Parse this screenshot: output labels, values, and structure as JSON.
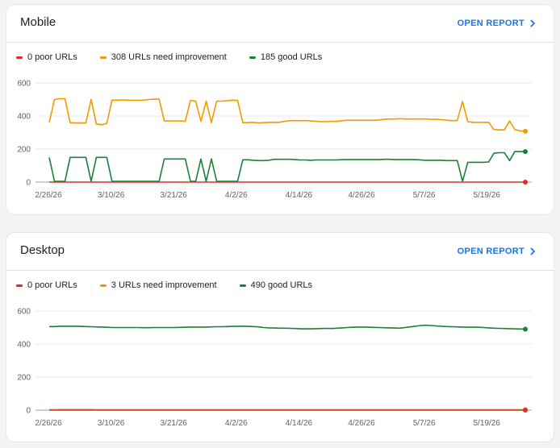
{
  "colors": {
    "poor": "#d93025",
    "needs_improvement": "#f29900",
    "good": "#188038",
    "accent": "#1a73e8"
  },
  "reports": [
    {
      "title": "Mobile",
      "open_report_label": "OPEN REPORT",
      "legend": [
        {
          "label": "0 poor URLs",
          "color": "#d93025"
        },
        {
          "label": "308 URLs need improvement",
          "color": "#f29900"
        },
        {
          "label": "185 good URLs",
          "color": "#188038"
        }
      ],
      "chart_data": {
        "type": "line",
        "y_ticks": [
          "0",
          "200",
          "400",
          "600"
        ],
        "ylim": [
          0,
          600
        ],
        "x_tick_labels": [
          "2/26/26",
          "3/10/26",
          "3/21/26",
          "4/2/26",
          "4/14/26",
          "4/26/26",
          "5/7/26",
          "5/19/26"
        ],
        "grid": true,
        "series": [
          {
            "name": "0 poor URLs",
            "color": "#d93025",
            "values": [
              0,
              0,
              0,
              0,
              0,
              0,
              0,
              0,
              0,
              0,
              0,
              0,
              0,
              0,
              0,
              0,
              0,
              0,
              0,
              0,
              0,
              0,
              0,
              0,
              0,
              0,
              0,
              0,
              0,
              0,
              0,
              0,
              0,
              0,
              0,
              0,
              0,
              0,
              0,
              0,
              0,
              0,
              0,
              0,
              0,
              0,
              0,
              0,
              0,
              0,
              0,
              0,
              0,
              0,
              0,
              0,
              0,
              0,
              0,
              0,
              0,
              0,
              0,
              0,
              0,
              0,
              0,
              0,
              0,
              0,
              0,
              0,
              0,
              0,
              0,
              0,
              0,
              0,
              0,
              0,
              0,
              0,
              0,
              0,
              0,
              0,
              0,
              0,
              0,
              0,
              0,
              0
            ]
          },
          {
            "name": "308 URLs need improvement",
            "color": "#f29900",
            "values": [
              360,
              500,
              505,
              505,
              360,
              358,
              358,
              358,
              500,
              352,
              348,
              355,
              496,
              496,
              497,
              496,
              495,
              495,
              496,
              500,
              502,
              502,
              370,
              370,
              370,
              370,
              368,
              495,
              490,
              368,
              490,
              360,
              490,
              490,
              492,
              496,
              495,
              360,
              360,
              362,
              358,
              360,
              362,
              362,
              362,
              368,
              372,
              372,
              372,
              372,
              370,
              368,
              366,
              366,
              368,
              368,
              372,
              374,
              374,
              374,
              374,
              374,
              374,
              376,
              380,
              382,
              382,
              384,
              382,
              382,
              382,
              382,
              382,
              380,
              380,
              378,
              374,
              372,
              372,
              488,
              366,
              362,
              362,
              362,
              362,
              318,
              316,
              316,
              370,
              318,
              310,
              308
            ]
          },
          {
            "name": "185 good URLs",
            "color": "#188038",
            "values": [
              150,
              5,
              5,
              5,
              150,
              150,
              150,
              150,
              5,
              150,
              150,
              150,
              5,
              5,
              5,
              5,
              5,
              5,
              5,
              5,
              5,
              5,
              140,
              140,
              140,
              140,
              140,
              5,
              5,
              140,
              5,
              140,
              5,
              5,
              5,
              5,
              5,
              135,
              135,
              132,
              130,
              130,
              132,
              138,
              138,
              138,
              138,
              136,
              134,
              134,
              132,
              134,
              134,
              134,
              134,
              134,
              136,
              136,
              136,
              136,
              136,
              136,
              136,
              136,
              138,
              138,
              136,
              136,
              136,
              136,
              136,
              134,
              132,
              132,
              132,
              132,
              130,
              130,
              130,
              5,
              120,
              120,
              120,
              120,
              122,
              175,
              178,
              178,
              130,
              185,
              185,
              185
            ]
          }
        ]
      }
    },
    {
      "title": "Desktop",
      "open_report_label": "OPEN REPORT",
      "legend": [
        {
          "label": "0 poor URLs",
          "color": "#d93025"
        },
        {
          "label": "3 URLs need improvement",
          "color": "#f29900"
        },
        {
          "label": "490 good URLs",
          "color": "#188038"
        }
      ],
      "chart_data": {
        "type": "line",
        "y_ticks": [
          "0",
          "200",
          "400",
          "600"
        ],
        "ylim": [
          0,
          600
        ],
        "x_tick_labels": [
          "2/26/26",
          "3/10/26",
          "3/21/26",
          "4/2/26",
          "4/14/26",
          "4/26/26",
          "5/7/26",
          "5/19/26"
        ],
        "grid": true,
        "series": [
          {
            "name": "0 poor URLs",
            "color": "#d93025",
            "values": [
              0,
              0,
              0,
              0,
              0,
              0,
              0,
              0,
              0,
              0,
              0,
              0,
              0,
              0,
              0,
              0,
              0,
              0,
              0,
              0,
              0,
              0,
              0,
              0,
              0,
              0,
              0,
              0,
              0,
              0,
              0,
              0,
              0,
              0,
              0,
              0,
              0,
              0,
              0,
              0,
              0,
              0,
              0,
              0,
              0,
              0,
              0,
              0,
              0,
              0,
              0,
              0,
              0,
              0,
              0,
              0,
              0,
              0,
              0,
              0,
              0,
              0,
              0,
              0,
              0,
              0,
              0,
              0,
              0,
              0,
              0,
              0,
              0,
              0,
              0,
              0,
              0,
              0,
              0,
              0,
              0,
              0,
              0,
              0,
              0,
              0,
              0,
              0,
              0,
              0,
              0,
              0
            ]
          },
          {
            "name": "3 URLs need improvement",
            "color": "#f29900",
            "values": [
              3,
              3,
              4,
              4,
              4,
              4,
              4,
              4,
              4,
              3,
              3,
              3,
              3,
              3,
              3,
              3,
              3,
              3,
              3,
              3,
              3,
              3,
              3,
              3,
              3,
              3,
              3,
              3,
              3,
              3,
              3,
              3,
              3,
              3,
              3,
              3,
              3,
              3,
              3,
              3,
              3,
              3,
              3,
              3,
              3,
              3,
              3,
              3,
              3,
              3,
              3,
              3,
              3,
              3,
              3,
              3,
              3,
              3,
              3,
              3,
              3,
              3,
              3,
              3,
              3,
              3,
              3,
              3,
              3,
              3,
              3,
              3,
              3,
              3,
              3,
              3,
              3,
              3,
              3,
              3,
              3,
              3,
              3,
              3,
              3,
              3,
              3,
              3,
              3,
              3,
              3,
              3
            ]
          },
          {
            "name": "490 good URLs",
            "color": "#188038",
            "values": [
              506,
              506,
              508,
              508,
              508,
              508,
              507,
              506,
              505,
              504,
              503,
              502,
              500,
              500,
              500,
              500,
              500,
              500,
              499,
              499,
              500,
              500,
              500,
              500,
              500,
              501,
              502,
              503,
              503,
              503,
              503,
              504,
              505,
              505,
              506,
              507,
              508,
              508,
              507,
              506,
              504,
              500,
              498,
              497,
              496,
              496,
              495,
              494,
              492,
              492,
              492,
              493,
              494,
              495,
              494,
              496,
              498,
              500,
              502,
              503,
              503,
              502,
              501,
              500,
              499,
              498,
              497,
              496,
              500,
              504,
              508,
              512,
              514,
              512,
              510,
              508,
              506,
              505,
              504,
              503,
              502,
              502,
              502,
              500,
              498,
              496,
              495,
              494,
              493,
              492,
              491,
              490
            ]
          }
        ]
      }
    }
  ]
}
